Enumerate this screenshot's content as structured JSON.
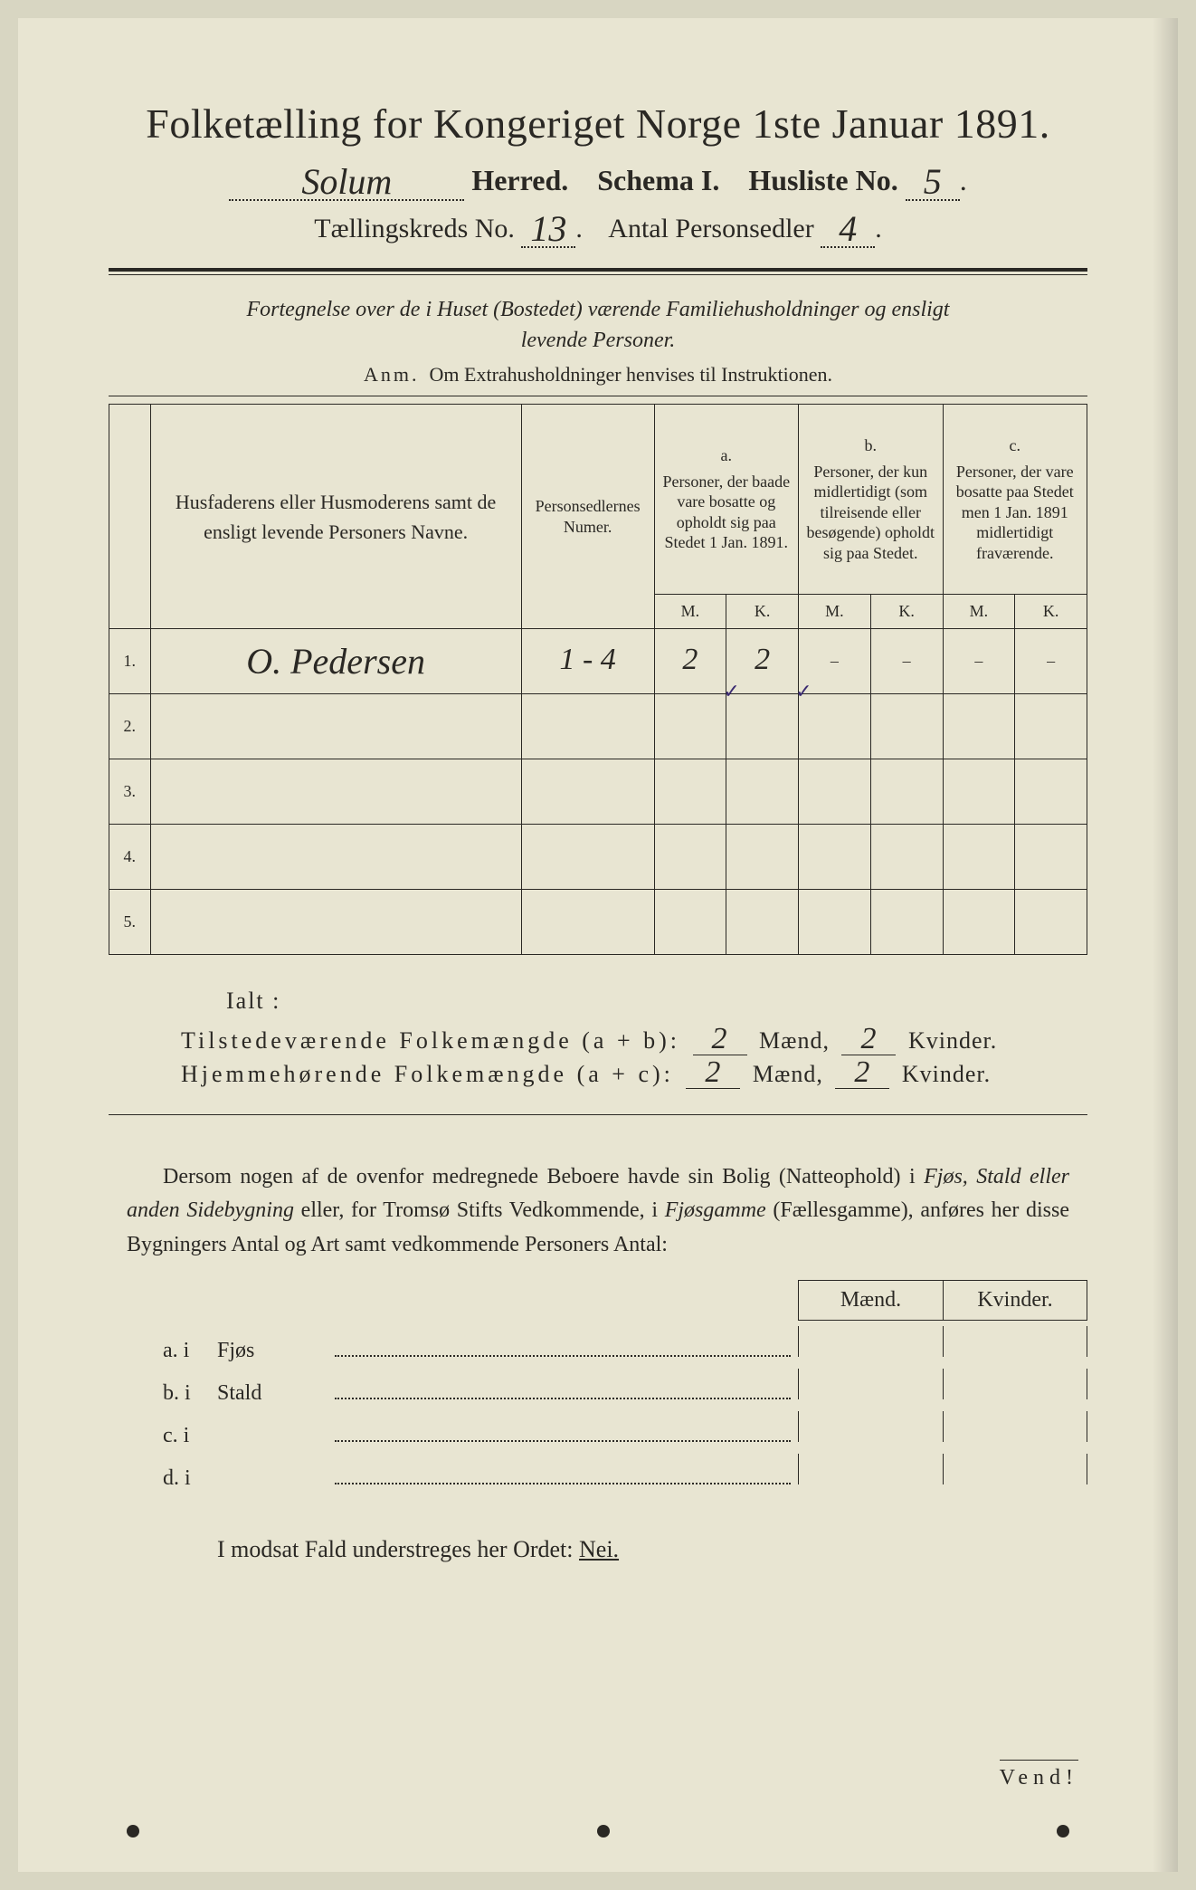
{
  "colors": {
    "paper": "#e8e5d2",
    "ink": "#2a2824",
    "check": "#3a2a70",
    "bg": "#d8d6c2"
  },
  "header": {
    "title": "Folketælling for Kongeriget Norge 1ste Januar 1891.",
    "herred_value": "Solum",
    "herred_label": "Herred.",
    "schema_label": "Schema I.",
    "husliste_label": "Husliste No.",
    "husliste_value": "5",
    "kreds_label": "Tællingskreds No.",
    "kreds_value": "13",
    "antal_label": "Antal Personsedler",
    "antal_value": "4"
  },
  "subtitle": {
    "line1": "Fortegnelse over de i Huset (Bostedet) værende Familiehusholdninger og ensligt",
    "line2": "levende Personer.",
    "anm_label": "Anm.",
    "anm_text": "Om Extrahusholdninger henvises til Instruktionen."
  },
  "table": {
    "col_name": "Husfaderens eller Husmoderens samt de ensligt levende Personers Navne.",
    "col_pers": "Personsedlernes Numer.",
    "col_a_label": "a.",
    "col_a": "Personer, der baade vare bosatte og opholdt sig paa Stedet 1 Jan. 1891.",
    "col_b_label": "b.",
    "col_b": "Personer, der kun midlertidigt (som tilreisende eller besøgende) opholdt sig paa Stedet.",
    "col_c_label": "c.",
    "col_c": "Personer, der vare bosatte paa Stedet men 1 Jan. 1891 midlertidigt fraværende.",
    "m": "M.",
    "k": "K.",
    "rows": [
      {
        "n": "1.",
        "name": "O. Pedersen",
        "pers": "1 - 4",
        "a_m": "2",
        "a_k": "2",
        "b_m": "–",
        "b_k": "–",
        "c_m": "–",
        "c_k": "–",
        "check_a_m": "✓",
        "check_a_k": "✓"
      },
      {
        "n": "2.",
        "name": "",
        "pers": "",
        "a_m": "",
        "a_k": "",
        "b_m": "",
        "b_k": "",
        "c_m": "",
        "c_k": ""
      },
      {
        "n": "3.",
        "name": "",
        "pers": "",
        "a_m": "",
        "a_k": "",
        "b_m": "",
        "b_k": "",
        "c_m": "",
        "c_k": ""
      },
      {
        "n": "4.",
        "name": "",
        "pers": "",
        "a_m": "",
        "a_k": "",
        "b_m": "",
        "b_k": "",
        "c_m": "",
        "c_k": ""
      },
      {
        "n": "5.",
        "name": "",
        "pers": "",
        "a_m": "",
        "a_k": "",
        "b_m": "",
        "b_k": "",
        "c_m": "",
        "c_k": ""
      }
    ]
  },
  "totals": {
    "ialt": "Ialt :",
    "line1_label": "Tilstedeværende Folkemængde (a + b):",
    "line2_label": "Hjemmehørende Folkemængde (a + c):",
    "maend": "Mænd,",
    "kvinder": "Kvinder.",
    "l1_m": "2",
    "l1_k": "2",
    "l2_m": "2",
    "l2_k": "2"
  },
  "para": {
    "text1": "Dersom nogen af de ovenfor medregnede Beboere havde sin Bolig (Natteophold) i ",
    "em1": "Fjøs, Stald eller anden Sidebygning",
    "text2": " eller, for Tromsø Stifts Vedkommende, i ",
    "em2": "Fjøsgamme",
    "text3": " (Fællesgamme), anføres her disse Bygningers Antal og Art samt vedkommende Personers Antal:"
  },
  "side": {
    "maend": "Mænd.",
    "kvinder": "Kvinder.",
    "rows": [
      {
        "lbl": "a.  i",
        "txt": "Fjøs"
      },
      {
        "lbl": "b.  i",
        "txt": "Stald"
      },
      {
        "lbl": "c.  i",
        "txt": ""
      },
      {
        "lbl": "d.  i",
        "txt": ""
      }
    ]
  },
  "modsat": {
    "text": "I modsat Fald understreges her Ordet: ",
    "nei": "Nei."
  },
  "vend": "Vend!"
}
